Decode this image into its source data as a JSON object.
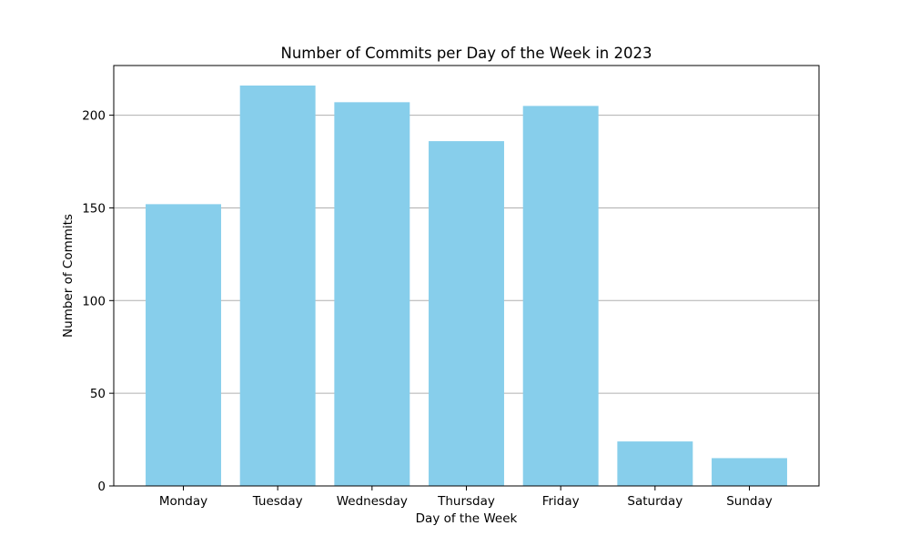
{
  "chart_data": {
    "type": "bar",
    "title": "Number of Commits per Day of the Week in 2023",
    "xlabel": "Day of the Week",
    "ylabel": "Number of Commits",
    "categories": [
      "Monday",
      "Tuesday",
      "Wednesday",
      "Thursday",
      "Friday",
      "Saturday",
      "Sunday"
    ],
    "values": [
      152,
      216,
      207,
      186,
      205,
      24,
      15
    ],
    "ylim": [
      0,
      226.8
    ],
    "yticks": [
      0,
      50,
      100,
      150,
      200
    ],
    "grid": "y-axis",
    "bar_color": "#87CEEB",
    "grid_color": "#b0b0b0"
  }
}
